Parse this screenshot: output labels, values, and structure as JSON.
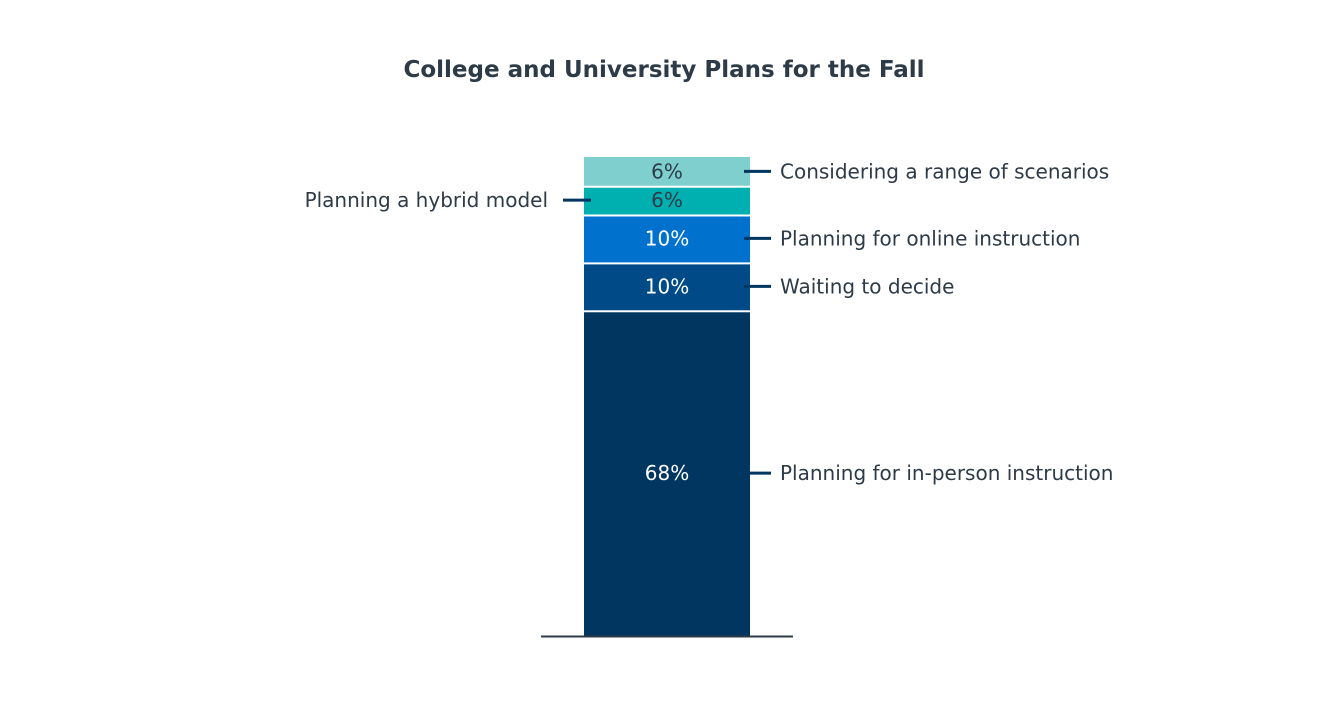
{
  "chart_data": {
    "type": "bar",
    "stacked": true,
    "title": "College and University Plans for the Fall",
    "xlabel": "",
    "ylabel": "",
    "ylim": [
      0,
      100
    ],
    "grid": false,
    "legend": "none",
    "series": [
      {
        "name": "Planning for in-person instruction",
        "value": 68,
        "label": "68%",
        "color": "#00365f",
        "label_color": "#ffffff",
        "label_side": "right"
      },
      {
        "name": "Waiting to decide",
        "value": 10,
        "label": "10%",
        "color": "#004b87",
        "label_color": "#ffffff",
        "label_side": "right"
      },
      {
        "name": "Planning for online instruction",
        "value": 10,
        "label": "10%",
        "color": "#0072ce",
        "label_color": "#ffffff",
        "label_side": "right"
      },
      {
        "name": "Planning a hybrid model",
        "value": 6,
        "label": "6%",
        "color": "#00b0b0",
        "label_color": "#2d3a48",
        "label_side": "left"
      },
      {
        "name": "Considering a range of scenarios",
        "value": 6,
        "label": "6%",
        "color": "#7fcfcf",
        "label_color": "#2d3a48",
        "label_side": "right"
      }
    ],
    "colors": {
      "text": "#2d3a48",
      "leader": "#00365f",
      "baseline": "#2d3a48"
    }
  }
}
